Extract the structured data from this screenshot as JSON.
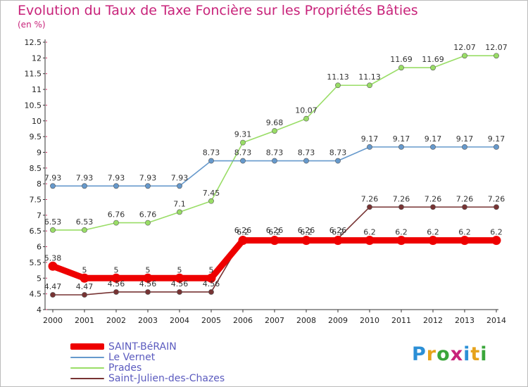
{
  "header": {
    "title": "Evolution du Taux de Taxe Foncière sur les Propriétés Bâties",
    "unit": "(en %)"
  },
  "logo": {
    "text": "Proxiti",
    "colors": [
      "#2b8fd6",
      "#e6a31c",
      "#3aa63a",
      "#c8237a",
      "#2b8fd6",
      "#e6a31c",
      "#3aa63a"
    ]
  },
  "chart_data": {
    "type": "line",
    "x": [
      "2000",
      "2001",
      "2002",
      "2003",
      "2004",
      "2005",
      "2006",
      "2007",
      "2008",
      "2009",
      "2010",
      "2011",
      "2012",
      "2013",
      "2014"
    ],
    "ylim": [
      4,
      12.5
    ],
    "yticks": [
      "4",
      "4.5",
      "5",
      "5.5",
      "6",
      "6.5",
      "7",
      "7.5",
      "8",
      "8.5",
      "9",
      "9.5",
      "10",
      "10.5",
      "11",
      "11.5",
      "12",
      "12.5"
    ],
    "grid": false,
    "legend_position": "bottom-left",
    "series": [
      {
        "name": "SAINT-BéRAIN",
        "color": "#ee0000",
        "values": [
          5.38,
          5,
          5,
          5,
          5,
          5,
          6.2,
          6.2,
          6.2,
          6.2,
          6.2,
          6.2,
          6.2,
          6.2,
          6.2
        ],
        "labels": [
          "5.38",
          "5",
          "5",
          "5",
          "5",
          "5",
          "6.2",
          "6.2",
          "6.2",
          "6.2",
          "6.2",
          "6.2",
          "6.2",
          "6.2",
          "6.2"
        ]
      },
      {
        "name": "Le Vernet",
        "color": "#6699cc",
        "values": [
          7.93,
          7.93,
          7.93,
          7.93,
          7.93,
          8.73,
          8.73,
          8.73,
          8.73,
          8.73,
          9.17,
          9.17,
          9.17,
          9.17,
          9.17
        ],
        "labels": [
          "7.93",
          "7.93",
          "7.93",
          "7.93",
          "7.93",
          "8.73",
          "8.73",
          "8.73",
          "8.73",
          "8.73",
          "9.17",
          "9.17",
          "9.17",
          "9.17",
          "9.17"
        ]
      },
      {
        "name": "Prades",
        "color": "#99dd66",
        "values": [
          6.53,
          6.53,
          6.76,
          6.76,
          7.1,
          7.45,
          9.31,
          9.68,
          10.07,
          11.13,
          11.13,
          11.69,
          11.69,
          12.07,
          12.07
        ],
        "labels": [
          "6.53",
          "6.53",
          "6.76",
          "6.76",
          "7.1",
          "7.45",
          "9.31",
          "9.68",
          "10.07",
          "11.13",
          "11.13",
          "11.69",
          "11.69",
          "12.07",
          "12.07"
        ]
      },
      {
        "name": "Saint-Julien-des-Chazes",
        "color": "#773333",
        "values": [
          4.47,
          4.47,
          4.56,
          4.56,
          4.56,
          4.56,
          6.26,
          6.26,
          6.26,
          6.26,
          7.26,
          7.26,
          7.26,
          7.26,
          7.26
        ],
        "labels": [
          "4.47",
          "4.47",
          "4.56",
          "4.56",
          "4.56",
          "4.56",
          "6.26",
          "6.26",
          "6.26",
          "6.26",
          "7.26",
          "7.26",
          "7.26",
          "7.26",
          "7.26"
        ]
      }
    ]
  }
}
